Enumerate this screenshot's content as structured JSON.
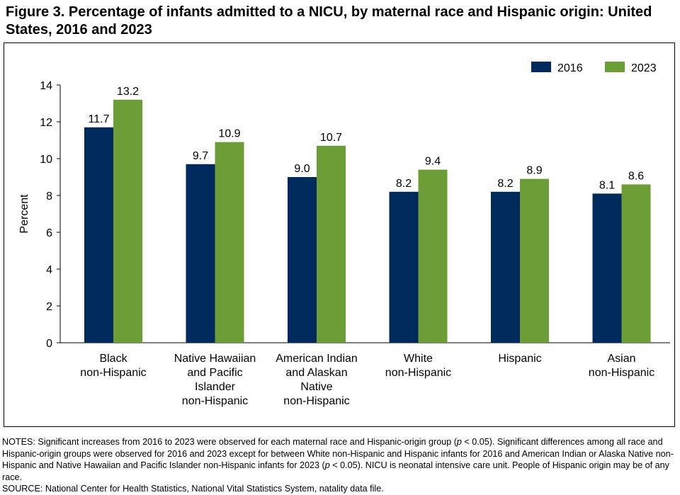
{
  "figure": {
    "title": "Figure 3. Percentage of infants admitted to a NICU, by maternal race and Hispanic origin: United States, 2016 and 2023"
  },
  "chart_data": {
    "type": "bar",
    "categories": [
      [
        "Black",
        "non-Hispanic"
      ],
      [
        "Native Hawaiian",
        "and Pacific",
        "Islander",
        "non-Hispanic"
      ],
      [
        "American Indian",
        "and Alaskan",
        "Native",
        "non-Hispanic"
      ],
      [
        "White",
        "non-Hispanic"
      ],
      [
        "Hispanic"
      ],
      [
        "Asian",
        "non-Hispanic"
      ]
    ],
    "series": [
      {
        "name": "2016",
        "color": "#002a5c",
        "values": [
          11.7,
          9.7,
          9.0,
          8.2,
          8.2,
          8.1
        ],
        "labels": [
          "11.7",
          "9.7",
          "9.0",
          "8.2",
          "8.2",
          "8.1"
        ]
      },
      {
        "name": "2023",
        "color": "#6d9d36",
        "values": [
          13.2,
          10.9,
          10.7,
          9.4,
          8.9,
          8.6
        ],
        "labels": [
          "13.2",
          "10.9",
          "10.7",
          "9.4",
          "8.9",
          "8.6"
        ]
      }
    ],
    "ylabel": "Percent",
    "xlabel": "",
    "ylim": [
      0,
      14
    ],
    "yticks": [
      0,
      2,
      4,
      6,
      8,
      10,
      12,
      14
    ],
    "legend_position": "top-right",
    "grid": false
  },
  "notes": {
    "notes_prefix": "NOTES: Significant increases from 2016 to 2023 were observed for each maternal race and Hispanic-origin group (",
    "p_letter_1": "p",
    "notes_mid": " < 0.05). Significant differences among all race and Hispanic-origin groups were observed for 2016 and 2023 except for between White non-Hispanic and Hispanic infants for 2016 and American Indian or Alaska Native non-Hispanic and Native Hawaiian and Pacific Islander non-Hispanic infants for 2023 (",
    "p_letter_2": "p",
    "notes_suffix": " < 0.05). NICU is neonatal intensive care unit. People of Hispanic origin may be of any race.",
    "source": "SOURCE: National Center for Health Statistics, National Vital Statistics System, natality data file."
  }
}
